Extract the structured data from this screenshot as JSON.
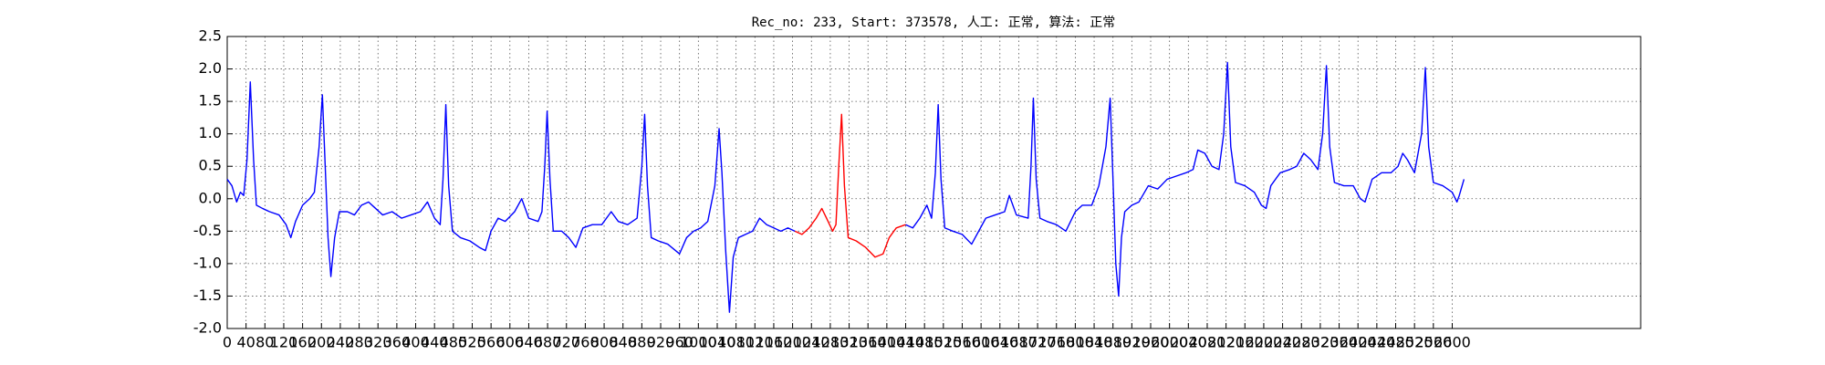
{
  "chart_data": {
    "type": "line",
    "title": "Rec_no: 233, Start: 373578, 人工: 正常, 算法: 正常",
    "xlim": [
      0,
      3000
    ],
    "ylim": [
      -2.0,
      2.5
    ],
    "xticks": [
      0,
      40,
      80,
      120,
      160,
      200,
      240,
      280,
      320,
      360,
      400,
      440,
      480,
      520,
      560,
      600,
      640,
      680,
      720,
      760,
      800,
      840,
      880,
      920,
      960,
      1000,
      1040,
      1080,
      1120,
      1160,
      1200,
      1240,
      1280,
      1320,
      1360,
      1400,
      1440,
      1480,
      1520,
      1560,
      1600,
      1640,
      1680,
      1720,
      1760,
      1800,
      1840,
      1880,
      1920,
      1960,
      2000,
      2040,
      2080,
      2120,
      2160,
      2200,
      2240,
      2280,
      2320,
      2360,
      2400,
      2440,
      2480,
      2520,
      2560,
      2600
    ],
    "yticks": [
      {
        "value": -2.0,
        "label": "-2.0"
      },
      -1.5,
      {
        "value": -1.0,
        "label": "-1.0"
      },
      -0.5,
      {
        "value": 0.0,
        "label": "0.0"
      },
      0.5,
      {
        "value": 1.0,
        "label": "1.0"
      },
      1.5,
      {
        "value": 2.0,
        "label": "2.0"
      },
      2.5
    ],
    "grid": true,
    "series": [
      {
        "color": "#0000ff",
        "x": [
          0,
          10,
          20,
          28,
          35,
          42,
          49,
          56,
          62,
          75,
          90,
          110,
          125,
          135,
          145,
          160,
          175,
          185,
          195,
          202,
          208,
          214,
          220,
          228,
          238,
          255,
          270,
          285,
          300,
          315,
          330,
          350,
          370,
          390,
          410,
          425,
          440,
          452,
          458,
          464,
          470,
          478,
          495,
          515,
          535,
          548,
          560,
          575,
          590,
          610,
          625,
          640,
          660,
          668,
          674,
          679,
          685,
          692,
          710,
          725,
          740,
          755,
          775,
          795,
          815,
          830,
          850,
          870,
          880,
          886,
          892,
          900,
          915,
          935,
          960,
          975,
          990,
          1005,
          1020,
          1035,
          1044,
          1050,
          1058,
          1066,
          1074,
          1085,
          1100,
          1115,
          1130,
          1145,
          1160,
          1175,
          1190,
          1205
        ],
        "values": [
          0.3,
          0.2,
          -0.05,
          0.1,
          0.05,
          0.6,
          1.8,
          0.6,
          -0.1,
          -0.15,
          -0.2,
          -0.25,
          -0.4,
          -0.6,
          -0.35,
          -0.1,
          0.0,
          0.1,
          0.8,
          1.6,
          0.5,
          -0.6,
          -1.2,
          -0.6,
          -0.2,
          -0.2,
          -0.25,
          -0.1,
          -0.05,
          -0.15,
          -0.25,
          -0.2,
          -0.3,
          -0.25,
          -0.2,
          -0.05,
          -0.3,
          -0.4,
          0.3,
          1.45,
          0.2,
          -0.5,
          -0.6,
          -0.65,
          -0.75,
          -0.8,
          -0.5,
          -0.3,
          -0.35,
          -0.2,
          0.0,
          -0.3,
          -0.35,
          -0.2,
          0.5,
          1.35,
          0.3,
          -0.5,
          -0.5,
          -0.6,
          -0.75,
          -0.45,
          -0.4,
          -0.4,
          -0.2,
          -0.35,
          -0.4,
          -0.3,
          0.5,
          1.3,
          0.2,
          -0.6,
          -0.65,
          -0.7,
          -0.85,
          -0.6,
          -0.5,
          -0.45,
          -0.35,
          0.2,
          1.08,
          0.4,
          -0.8,
          -1.75,
          -0.9,
          -0.6,
          -0.55,
          -0.5,
          -0.3,
          -0.4,
          -0.45,
          -0.5,
          -0.45,
          -0.5
        ]
      },
      {
        "color": "#ff0000",
        "x": [
          1205,
          1220,
          1235,
          1250,
          1262,
          1272,
          1285,
          1292,
          1298,
          1304,
          1310,
          1318,
          1335,
          1355,
          1375,
          1392,
          1405,
          1420,
          1440
        ],
        "values": [
          -0.5,
          -0.55,
          -0.45,
          -0.3,
          -0.15,
          -0.3,
          -0.5,
          -0.4,
          0.5,
          1.3,
          0.2,
          -0.6,
          -0.65,
          -0.75,
          -0.9,
          -0.85,
          -0.6,
          -0.45,
          -0.4
        ]
      },
      {
        "color": "#0000ff",
        "x": [
          1440,
          1455,
          1470,
          1485,
          1495,
          1503,
          1509,
          1515,
          1523,
          1540,
          1560,
          1580,
          1595,
          1610,
          1630,
          1650,
          1660,
          1675,
          1700,
          1706,
          1711,
          1717,
          1725,
          1740,
          1760,
          1780,
          1800,
          1815,
          1835,
          1850,
          1865,
          1874,
          1880,
          1886,
          1892,
          1898,
          1905,
          1920,
          1935,
          1955,
          1975,
          1995,
          2015,
          2035,
          2050,
          2060,
          2075,
          2090,
          2105,
          2115,
          2123,
          2130,
          2140,
          2160,
          2180,
          2195,
          2205,
          2215,
          2235,
          2255,
          2270,
          2285,
          2300,
          2315,
          2325,
          2333,
          2340,
          2350,
          2370,
          2390,
          2405,
          2415,
          2430,
          2450,
          2470,
          2485,
          2495,
          2505,
          2520,
          2535,
          2543,
          2550,
          2560,
          2580,
          2600,
          2610,
          2615,
          2625
        ],
        "values": [
          -0.4,
          -0.45,
          -0.3,
          -0.1,
          -0.3,
          0.4,
          1.45,
          0.3,
          -0.45,
          -0.5,
          -0.55,
          -0.7,
          -0.5,
          -0.3,
          -0.25,
          -0.2,
          0.05,
          -0.25,
          -0.3,
          0.5,
          1.55,
          0.3,
          -0.3,
          -0.35,
          -0.4,
          -0.5,
          -0.2,
          -0.1,
          -0.1,
          0.2,
          0.8,
          1.55,
          0.3,
          -1.0,
          -1.5,
          -0.6,
          -0.2,
          -0.1,
          -0.05,
          0.2,
          0.15,
          0.3,
          0.35,
          0.4,
          0.45,
          0.75,
          0.7,
          0.5,
          0.45,
          1.0,
          2.1,
          0.8,
          0.25,
          0.2,
          0.1,
          -0.1,
          -0.15,
          0.2,
          0.4,
          0.45,
          0.5,
          0.7,
          0.6,
          0.45,
          1.0,
          2.05,
          0.8,
          0.25,
          0.2,
          0.2,
          0.0,
          -0.05,
          0.3,
          0.4,
          0.4,
          0.5,
          0.7,
          0.6,
          0.4,
          1.0,
          2.02,
          0.8,
          0.25,
          0.2,
          0.1,
          -0.05,
          0.05,
          0.3
        ]
      }
    ]
  }
}
